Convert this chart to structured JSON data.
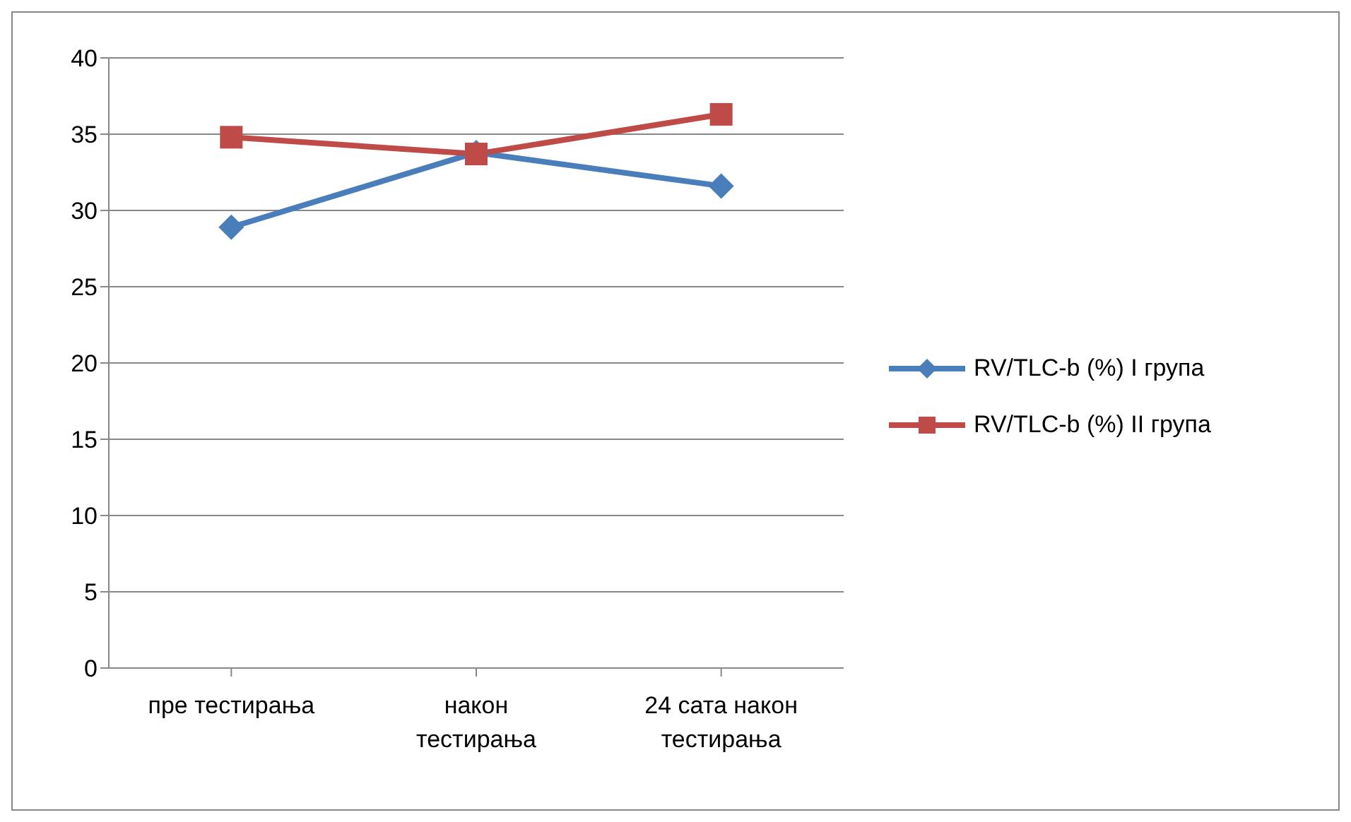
{
  "chart_data": {
    "type": "line",
    "categories": [
      "пре тестирања",
      "након тестирања",
      "24 сата након тестирања"
    ],
    "series": [
      {
        "name": "RV/TLC-b (%) I група",
        "color": "#4a7ebb",
        "values": [
          28.9,
          33.8,
          31.6
        ],
        "marker": "diamond"
      },
      {
        "name": "RV/TLC-b (%) II група",
        "color": "#be4b48",
        "values": [
          34.8,
          33.7,
          36.3
        ],
        "marker": "square"
      }
    ],
    "ylim": [
      0,
      40
    ],
    "yticks": [
      0,
      5,
      10,
      15,
      20,
      25,
      30,
      35,
      40
    ],
    "grid": "y",
    "legend": "right"
  }
}
